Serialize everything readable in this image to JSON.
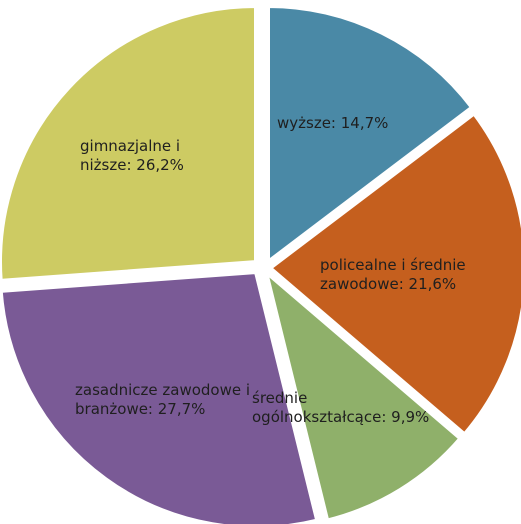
{
  "chart_data": {
    "type": "pie",
    "title": "",
    "slices": [
      {
        "label": "wyższe",
        "value": 14.7,
        "color": "#4A89A6",
        "display": "wyższe: 14,7%"
      },
      {
        "label": "policealne i średnie zawodowe",
        "value": 21.6,
        "color": "#C55F1E",
        "display": "policealne i średnie zawodowe: 21,6%"
      },
      {
        "label": "średnie ogólnokształcące",
        "value": 9.9,
        "color": "#8FB06A",
        "display": "średnie ogólnokształcące: 9,9%"
      },
      {
        "label": "zasadnicze zawodowe i branżowe",
        "value": 27.7,
        "color": "#7A5A96",
        "display": "zasadnicze zawodowe i branżowe: 27,7%"
      },
      {
        "label": "gimnazjalne i niższe",
        "value": 26.2,
        "color": "#CDCB63",
        "display": "gimnazjalne i niższe: 26,2%"
      }
    ],
    "data_labels": [
      [
        "wyższe: 14,7%"
      ],
      [
        "policealne i średnie",
        "zawodowe: 21,6%"
      ],
      [
        "średnie",
        "ogólnokształcące: 9,9%"
      ],
      [
        "zasadnicze zawodowe i",
        "branżowe: 27,7%"
      ],
      [
        "gimnazjalne i",
        "niższe: 26,2%"
      ]
    ]
  }
}
